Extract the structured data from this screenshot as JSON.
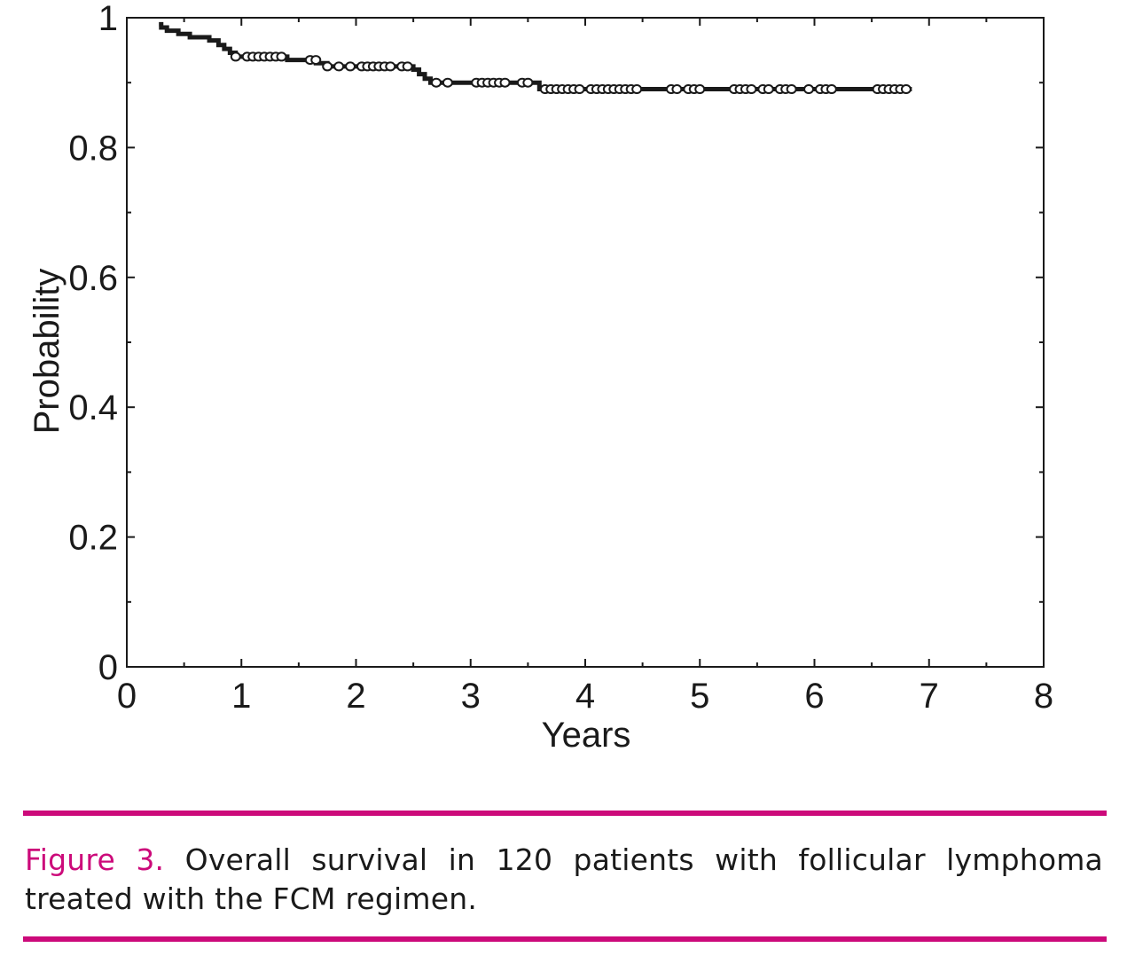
{
  "chart_data": {
    "type": "line",
    "style": "kaplan-meier-step",
    "xlabel": "Years",
    "ylabel": "Probability",
    "xlim": [
      0,
      8
    ],
    "ylim": [
      0,
      1
    ],
    "x_ticks": [
      "0",
      "1",
      "2",
      "3",
      "4",
      "5",
      "6",
      "7",
      "8"
    ],
    "y_ticks": [
      "0",
      "0.2",
      "0.4",
      "0.6",
      "0.8",
      "1"
    ],
    "grid": false,
    "legend": "none",
    "line_color": "#1a1a1a",
    "series": [
      {
        "steps": [
          [
            0.28,
            0.99
          ],
          [
            0.3,
            0.985
          ],
          [
            0.35,
            0.98
          ],
          [
            0.45,
            0.975
          ],
          [
            0.55,
            0.97
          ],
          [
            0.72,
            0.965
          ],
          [
            0.8,
            0.958
          ],
          [
            0.85,
            0.952
          ],
          [
            0.9,
            0.946
          ],
          [
            0.95,
            0.94
          ],
          [
            1.4,
            0.935
          ],
          [
            1.65,
            0.93
          ],
          [
            1.75,
            0.925
          ],
          [
            2.5,
            0.92
          ],
          [
            2.55,
            0.913
          ],
          [
            2.6,
            0.906
          ],
          [
            2.65,
            0.9
          ],
          [
            3.6,
            0.89
          ],
          [
            6.85,
            0.89
          ]
        ],
        "censored": [
          [
            0.95,
            0.94
          ],
          [
            1.05,
            0.94
          ],
          [
            1.1,
            0.94
          ],
          [
            1.15,
            0.94
          ],
          [
            1.2,
            0.94
          ],
          [
            1.25,
            0.94
          ],
          [
            1.3,
            0.94
          ],
          [
            1.35,
            0.94
          ],
          [
            1.6,
            0.935
          ],
          [
            1.65,
            0.935
          ],
          [
            1.75,
            0.925
          ],
          [
            1.85,
            0.925
          ],
          [
            1.95,
            0.925
          ],
          [
            2.05,
            0.925
          ],
          [
            2.1,
            0.925
          ],
          [
            2.15,
            0.925
          ],
          [
            2.2,
            0.925
          ],
          [
            2.25,
            0.925
          ],
          [
            2.3,
            0.925
          ],
          [
            2.4,
            0.925
          ],
          [
            2.45,
            0.925
          ],
          [
            2.7,
            0.9
          ],
          [
            2.8,
            0.9
          ],
          [
            3.05,
            0.9
          ],
          [
            3.1,
            0.9
          ],
          [
            3.15,
            0.9
          ],
          [
            3.2,
            0.9
          ],
          [
            3.25,
            0.9
          ],
          [
            3.3,
            0.9
          ],
          [
            3.45,
            0.9
          ],
          [
            3.5,
            0.9
          ],
          [
            3.65,
            0.89
          ],
          [
            3.7,
            0.89
          ],
          [
            3.75,
            0.89
          ],
          [
            3.8,
            0.89
          ],
          [
            3.85,
            0.89
          ],
          [
            3.9,
            0.89
          ],
          [
            3.95,
            0.89
          ],
          [
            4.05,
            0.89
          ],
          [
            4.1,
            0.89
          ],
          [
            4.15,
            0.89
          ],
          [
            4.2,
            0.89
          ],
          [
            4.25,
            0.89
          ],
          [
            4.3,
            0.89
          ],
          [
            4.35,
            0.89
          ],
          [
            4.4,
            0.89
          ],
          [
            4.45,
            0.89
          ],
          [
            4.75,
            0.89
          ],
          [
            4.8,
            0.89
          ],
          [
            4.9,
            0.89
          ],
          [
            4.95,
            0.89
          ],
          [
            5.0,
            0.89
          ],
          [
            5.3,
            0.89
          ],
          [
            5.35,
            0.89
          ],
          [
            5.4,
            0.89
          ],
          [
            5.45,
            0.89
          ],
          [
            5.55,
            0.89
          ],
          [
            5.6,
            0.89
          ],
          [
            5.7,
            0.89
          ],
          [
            5.75,
            0.89
          ],
          [
            5.8,
            0.89
          ],
          [
            5.95,
            0.89
          ],
          [
            6.05,
            0.89
          ],
          [
            6.1,
            0.89
          ],
          [
            6.15,
            0.89
          ],
          [
            6.55,
            0.89
          ],
          [
            6.6,
            0.89
          ],
          [
            6.65,
            0.89
          ],
          [
            6.7,
            0.89
          ],
          [
            6.75,
            0.89
          ],
          [
            6.8,
            0.89
          ]
        ]
      }
    ]
  },
  "caption": {
    "label": "Figure 3.",
    "text": "Overall survival in 120 patients with follicular lymphoma treated with the FCM regimen."
  },
  "colors": {
    "accent": "#cc0a7a",
    "text": "#1a1a1a"
  }
}
